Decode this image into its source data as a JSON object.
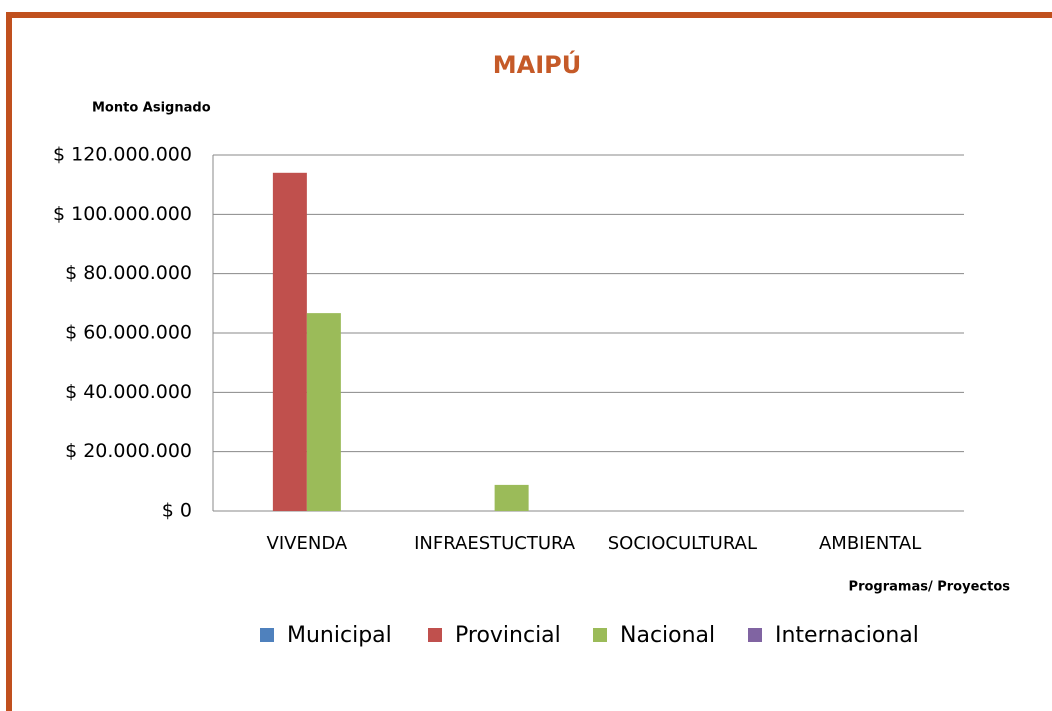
{
  "chart_data": {
    "type": "bar",
    "title": "MAIPÚ",
    "y_axis_label": "Monto Asignado",
    "x_axis_label": "Programas/ Proyectos",
    "categories": [
      "VIVENDA",
      "INFRAESTUCTURA",
      "SOCIOCULTURAL",
      "AMBIENTAL"
    ],
    "series": [
      {
        "name": "Municipal",
        "color": "#4f81bd",
        "values": [
          0,
          0,
          0,
          0
        ]
      },
      {
        "name": "Provincial",
        "color": "#c0504d",
        "values": [
          114000000,
          0,
          0,
          0
        ]
      },
      {
        "name": "Nacional",
        "color": "#9bbb59",
        "values": [
          66700000,
          8800000,
          0,
          0
        ]
      },
      {
        "name": "Internacional",
        "color": "#8064a2",
        "values": [
          0,
          0,
          0,
          0
        ]
      }
    ],
    "ylim": [
      0,
      120000000
    ],
    "yticks": [
      {
        "value": 0,
        "label": "$ 0"
      },
      {
        "value": 20000000,
        "label": "$ 20.000.000"
      },
      {
        "value": 40000000,
        "label": "$ 40.000.000"
      },
      {
        "value": 60000000,
        "label": "$ 60.000.000"
      },
      {
        "value": 80000000,
        "label": "$ 80.000.000"
      },
      {
        "value": 100000000,
        "label": "$ 100.000.000"
      },
      {
        "value": 120000000,
        "label": "$ 120.000.000"
      }
    ],
    "grid": true,
    "legend": "bottom"
  }
}
